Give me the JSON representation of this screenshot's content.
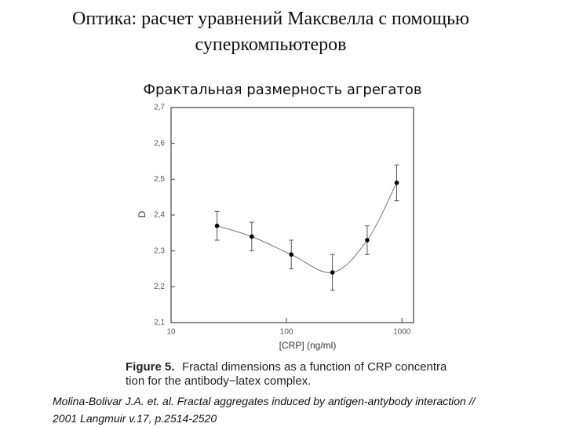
{
  "slide_title": "Оптика: расчет уравнений Максвелла с помощью суперкомпьютеров",
  "subtitle": "Фрактальная размерность агрегатов",
  "chart_data": {
    "type": "line",
    "x_label": "[CRP] (ng/ml)",
    "y_label": "D",
    "x": [
      25,
      50,
      110,
      250,
      500,
      900
    ],
    "series": [
      {
        "color": "#000000",
        "values": [
          2.37,
          2.34,
          2.29,
          2.24,
          2.33,
          2.49
        ],
        "errors": [
          0.04,
          0.04,
          0.04,
          0.05,
          0.04,
          0.05
        ]
      }
    ],
    "xlim": [
      10,
      1260
    ],
    "xlog": true,
    "xticks": [
      10,
      100,
      1000
    ],
    "ylim": [
      2.1,
      2.7
    ],
    "yticks": [
      {
        "value": 2.1,
        "label": "2,1"
      },
      {
        "value": 2.2,
        "label": "2,2"
      },
      {
        "value": 2.3,
        "label": "2,3"
      },
      {
        "value": 2.4,
        "label": "2,4"
      },
      {
        "value": 2.5,
        "label": "2,5"
      },
      {
        "value": 2.6,
        "label": "2,6"
      },
      {
        "value": 2.7,
        "label": "2,7"
      }
    ]
  },
  "caption": {
    "label": "Figure 5.",
    "lines": [
      "Fractal dimensions as a function of CRP concentra",
      "tion for the antibody−latex complex."
    ]
  },
  "citation": [
    "Molina-Bolivar J.A. et. al. Fractal aggregates induced by antigen-antybody interaction //",
    "2001 Langmuir v.17, p.2514-2520"
  ]
}
